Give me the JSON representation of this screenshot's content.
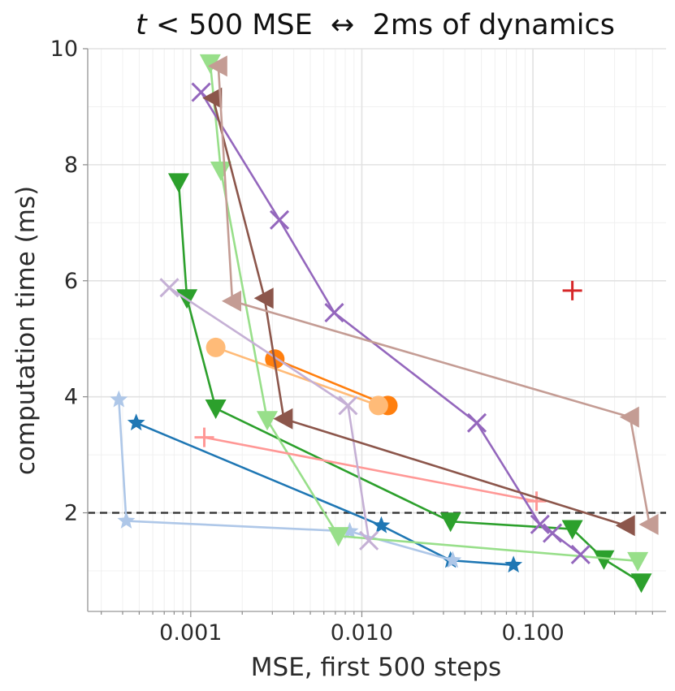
{
  "chart_data": {
    "type": "line",
    "title_parts": {
      "italic": "t",
      "rest": " < 500 MSE  ↔  2ms of dynamics"
    },
    "xlabel": "MSE, first 500 steps",
    "ylabel": "computation time (ms)",
    "x_scale": "log",
    "xlim": [
      0.00025,
      0.6
    ],
    "ylim": [
      0.3,
      10.0
    ],
    "x_ticks": [
      {
        "value": 0.001,
        "label": "0.001"
      },
      {
        "value": 0.01,
        "label": "0.010"
      },
      {
        "value": 0.1,
        "label": "0.100"
      }
    ],
    "y_ticks": [
      {
        "value": 2,
        "label": "2"
      },
      {
        "value": 4,
        "label": "4"
      },
      {
        "value": 6,
        "label": "6"
      },
      {
        "value": 8,
        "label": "8"
      },
      {
        "value": 10,
        "label": "10"
      }
    ],
    "reference_line": {
      "y": 2,
      "style": "dashed",
      "color": "#333333"
    },
    "grid": true,
    "legend": "none",
    "series": [
      {
        "color": "#1f77b4",
        "marker": "star",
        "points": [
          [
            0.00048,
            3.55
          ],
          [
            0.013,
            1.78
          ],
          [
            0.033,
            1.18
          ],
          [
            0.077,
            1.1
          ]
        ]
      },
      {
        "color": "#aec7e8",
        "marker": "star",
        "points": [
          [
            0.00038,
            3.95
          ],
          [
            0.00042,
            1.86
          ],
          [
            0.0085,
            1.68
          ],
          [
            0.034,
            1.18
          ]
        ]
      },
      {
        "color": "#ff7f0e",
        "marker": "circle",
        "points": [
          [
            0.0031,
            4.65
          ],
          [
            0.0142,
            3.85
          ]
        ]
      },
      {
        "color": "#ffbb78",
        "marker": "circle",
        "points": [
          [
            0.0014,
            4.85
          ],
          [
            0.0125,
            3.85
          ]
        ]
      },
      {
        "color": "#2ca02c",
        "marker": "triangle-down",
        "points": [
          [
            0.00085,
            7.7
          ],
          [
            0.00095,
            5.7
          ],
          [
            0.0014,
            3.8
          ],
          [
            0.033,
            1.85
          ],
          [
            0.17,
            1.72
          ],
          [
            0.26,
            1.2
          ],
          [
            0.43,
            0.8
          ]
        ]
      },
      {
        "color": "#98df8a",
        "marker": "triangle-down",
        "points": [
          [
            0.0013,
            9.75
          ],
          [
            0.0015,
            7.9
          ],
          [
            0.0028,
            3.6
          ],
          [
            0.0073,
            1.6
          ],
          [
            0.41,
            1.17
          ]
        ]
      },
      {
        "color": "#d62728",
        "marker": "plus",
        "points": [
          [
            0.17,
            5.83
          ]
        ]
      },
      {
        "color": "#ff9896",
        "marker": "plus",
        "points": [
          [
            0.0012,
            3.3
          ],
          [
            0.105,
            2.2
          ]
        ]
      },
      {
        "color": "#9467bd",
        "marker": "x",
        "points": [
          [
            0.00115,
            9.25
          ],
          [
            0.0033,
            7.05
          ],
          [
            0.0069,
            5.45
          ],
          [
            0.047,
            3.55
          ],
          [
            0.11,
            1.8
          ],
          [
            0.13,
            1.65
          ],
          [
            0.19,
            1.28
          ]
        ]
      },
      {
        "color": "#c5b0d5",
        "marker": "x",
        "points": [
          [
            0.00075,
            5.88
          ],
          [
            0.0083,
            3.85
          ],
          [
            0.011,
            1.52
          ]
        ]
      },
      {
        "color": "#8c564b",
        "marker": "triangle-left",
        "points": [
          [
            0.00135,
            9.15
          ],
          [
            0.0027,
            5.7
          ],
          [
            0.0035,
            3.62
          ],
          [
            0.35,
            1.78
          ]
        ]
      },
      {
        "color": "#c49c94",
        "marker": "triangle-left",
        "points": [
          [
            0.00145,
            9.7
          ],
          [
            0.00175,
            5.65
          ],
          [
            0.37,
            3.65
          ],
          [
            0.48,
            1.8
          ]
        ]
      }
    ]
  }
}
